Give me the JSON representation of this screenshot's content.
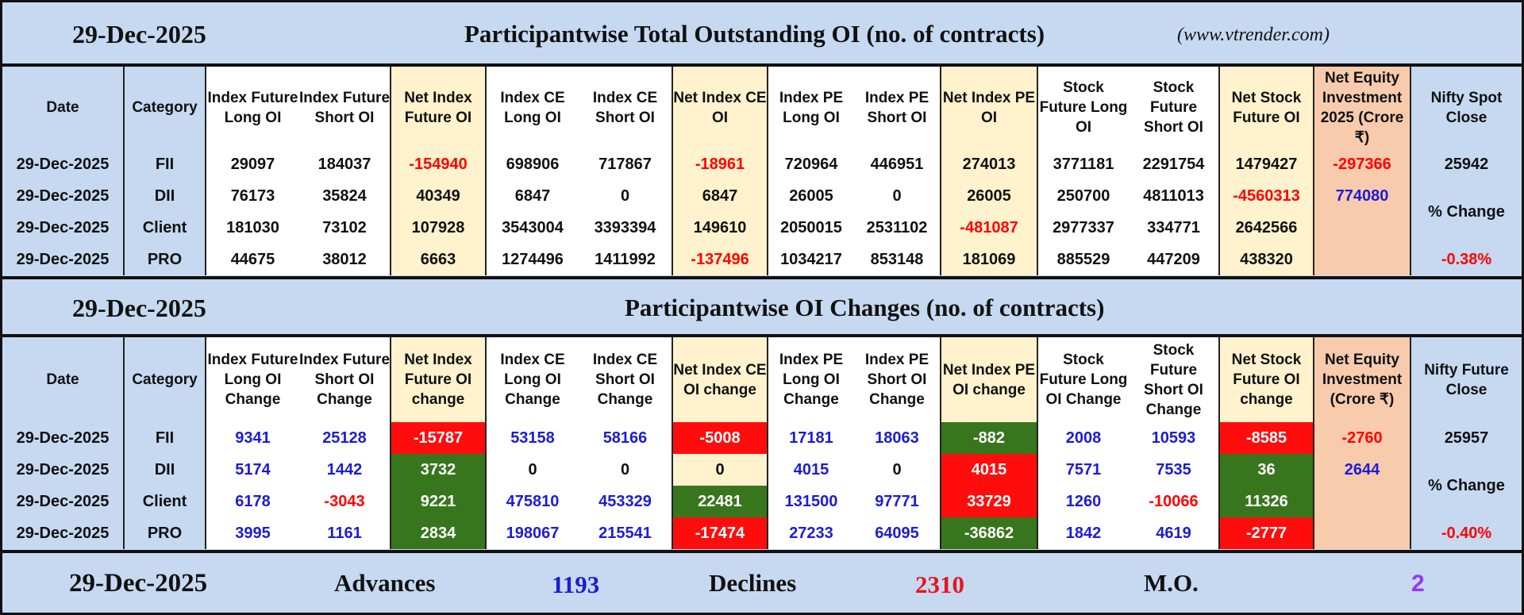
{
  "colors": {
    "band": "#c6d9f1",
    "cream": "#fff2cc",
    "orange": "#f8cbad",
    "red_cell": "#ff0d0d",
    "green_cell": "#38761d",
    "negative_text": "#ff0000",
    "positive_blue_text": "#1c1cd6",
    "purple_text": "#9933ff"
  },
  "section1": {
    "date": "29-Dec-2025",
    "title": "Participantwise Total Outstanding OI (no. of contracts)",
    "website": "(www.vtrender.com)",
    "headers": [
      "Date",
      "Category",
      "Index Future Long OI",
      "Index Future Short OI",
      "Net Index Future OI",
      "Index CE Long OI",
      "Index CE Short OI",
      "Net Index CE OI",
      "Index PE Long OI",
      "Index PE Short OI",
      "Net Index PE OI",
      "Stock Future Long OI",
      "Stock Future Short OI",
      "Net Stock Future OI",
      "Net Equity Investment 2025 (Crore ₹)",
      "Nifty Spot Close"
    ],
    "rows": [
      [
        "29-Dec-2025",
        "FII",
        "29097",
        "184037",
        "-154940",
        "698906",
        "717867",
        "-18961",
        "720964",
        "446951",
        "274013",
        "3771181",
        "2291754",
        "1479427",
        "-297366"
      ],
      [
        "29-Dec-2025",
        "DII",
        "76173",
        "35824",
        "40349",
        "6847",
        "0",
        "6847",
        "26005",
        "0",
        "26005",
        "250700",
        "4811013",
        "-4560313",
        "774080"
      ],
      [
        "29-Dec-2025",
        "Client",
        "181030",
        "73102",
        "107928",
        "3543004",
        "3393394",
        "149610",
        "2050015",
        "2531102",
        "-481087",
        "2977337",
        "334771",
        "2642566",
        ""
      ],
      [
        "29-Dec-2025",
        "PRO",
        "44675",
        "38012",
        "6663",
        "1274496",
        "1411992",
        "-137496",
        "1034217",
        "853148",
        "181069",
        "885529",
        "447209",
        "438320",
        ""
      ]
    ],
    "nifty_close": "25942",
    "pct_change_label": "% Change",
    "pct_change": "-0.38%"
  },
  "section2": {
    "date": "29-Dec-2025",
    "title": "Participantwise OI Changes (no. of contracts)",
    "headers": [
      "Date",
      "Category",
      "Index Future Long OI Change",
      "Index Future Short OI Change",
      "Net Index Future OI change",
      "Index CE Long OI Change",
      "Index CE Short OI Change",
      "Net Index CE OI change",
      "Index PE Long OI Change",
      "Index PE Short OI Change",
      "Net Index PE OI change",
      "Stock Future Long OI Change",
      "Stock Future Short OI Change",
      "Net Stock Future OI change",
      "Net Equity Investment (Crore ₹)",
      "Nifty Future Close"
    ],
    "rows": [
      [
        "29-Dec-2025",
        "FII",
        "9341",
        "25128",
        "-15787",
        "53158",
        "58166",
        "-5008",
        "17181",
        "18063",
        "-882",
        "2008",
        "10593",
        "-8585",
        "-2760"
      ],
      [
        "29-Dec-2025",
        "DII",
        "5174",
        "1442",
        "3732",
        "0",
        "0",
        "0",
        "4015",
        "0",
        "4015",
        "7571",
        "7535",
        "36",
        "2644"
      ],
      [
        "29-Dec-2025",
        "Client",
        "6178",
        "-3043",
        "9221",
        "475810",
        "453329",
        "22481",
        "131500",
        "97771",
        "33729",
        "1260",
        "-10066",
        "11326",
        ""
      ],
      [
        "29-Dec-2025",
        "PRO",
        "3995",
        "1161",
        "2834",
        "198067",
        "215541",
        "-17474",
        "27233",
        "64095",
        "-36862",
        "1842",
        "4619",
        "-2777",
        ""
      ]
    ],
    "net_cell_highlights": [
      {
        "4": "red",
        "7": "red",
        "10": "green",
        "13": "red"
      },
      {
        "4": "green",
        "7": "none",
        "10": "red",
        "13": "green"
      },
      {
        "4": "green",
        "7": "green",
        "10": "red",
        "13": "green"
      },
      {
        "4": "green",
        "7": "red",
        "10": "green",
        "13": "red"
      }
    ],
    "nifty_close": "25957",
    "pct_change_label": "% Change",
    "pct_change": "-0.40%"
  },
  "footer": {
    "date": "29-Dec-2025",
    "advances_label": "Advances",
    "advances": "1193",
    "declines_label": "Declines",
    "declines": "2310",
    "mo_label": "M.O.",
    "mo": "2"
  }
}
